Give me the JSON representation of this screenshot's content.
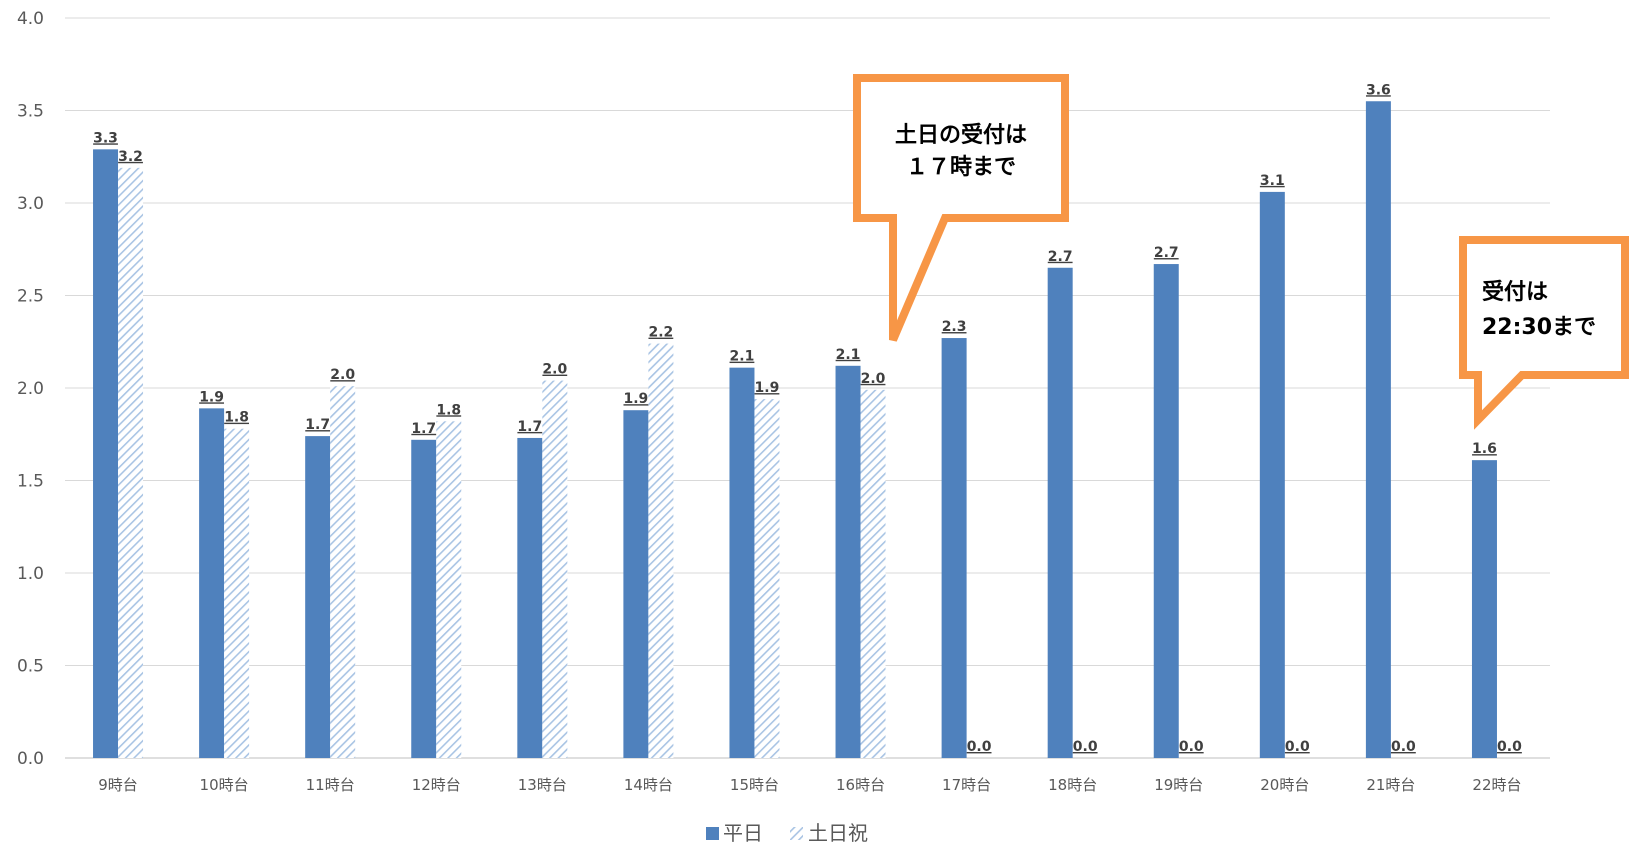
{
  "chart_data": {
    "type": "bar",
    "categories": [
      "9時台",
      "10時台",
      "11時台",
      "12時台",
      "13時台",
      "14時台",
      "15時台",
      "16時台",
      "17時台",
      "18時台",
      "19時台",
      "20時台",
      "21時台",
      "22時台"
    ],
    "series": [
      {
        "name": "平日",
        "values": [
          3.29,
          1.89,
          1.74,
          1.72,
          1.73,
          1.88,
          2.11,
          2.12,
          2.27,
          2.65,
          2.67,
          3.06,
          3.55,
          1.61
        ],
        "labels": [
          "3.3",
          "1.9",
          "1.7",
          "1.7",
          "1.7",
          "1.9",
          "2.1",
          "2.1",
          "2.3",
          "2.7",
          "2.7",
          "3.1",
          "3.6",
          "1.6"
        ],
        "color": "#4F81BD",
        "pattern": "solid"
      },
      {
        "name": "土日祝",
        "values": [
          3.19,
          1.78,
          2.01,
          1.82,
          2.04,
          2.24,
          1.94,
          1.99,
          0,
          0,
          0,
          0,
          0,
          0
        ],
        "labels": [
          "3.2",
          "1.8",
          "2.0",
          "1.8",
          "2.0",
          "2.2",
          "1.9",
          "2.0",
          "0.0",
          "0.0",
          "0.0",
          "0.0",
          "0.0",
          "0.0"
        ],
        "color": "#A9C4E4",
        "pattern": "diagonal-hatch"
      }
    ],
    "yticks": [
      "0.0",
      "0.5",
      "1.0",
      "1.5",
      "2.0",
      "2.5",
      "3.0",
      "3.5",
      "4.0"
    ],
    "ylim": [
      0,
      4.0
    ],
    "grid": true,
    "legend_position": "bottom",
    "callouts": [
      {
        "lines": [
          "土日の受付は",
          "１７時まで"
        ],
        "border_color": "#F79646"
      },
      {
        "lines": [
          "受付は",
          "22:30まで"
        ],
        "border_color": "#F79646"
      }
    ]
  }
}
